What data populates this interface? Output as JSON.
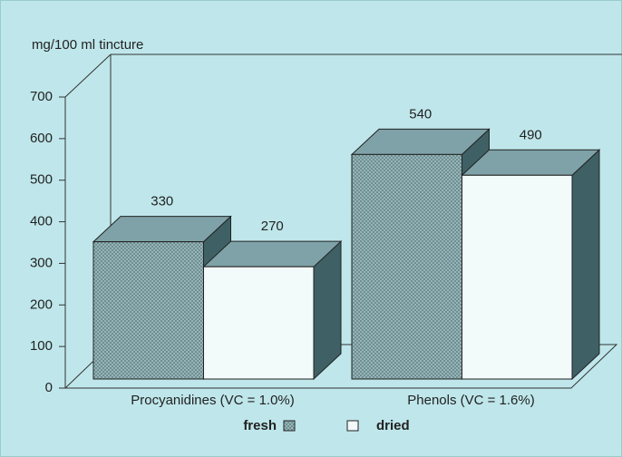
{
  "chart_data": {
    "type": "bar3d",
    "y_label": "mg/100 ml tincture",
    "categories": [
      "Procyanidines (VC = 1.0%)",
      "Phenols (VC = 1.6%)"
    ],
    "series": [
      {
        "name": "fresh",
        "color": "#8fb0b4",
        "values": [
          330,
          540
        ]
      },
      {
        "name": "dried",
        "color": "#f2fafa",
        "values": [
          270,
          490
        ]
      }
    ],
    "ylim": [
      0,
      700
    ],
    "yticks": [
      0,
      100,
      200,
      300,
      400,
      500,
      600,
      700
    ]
  }
}
